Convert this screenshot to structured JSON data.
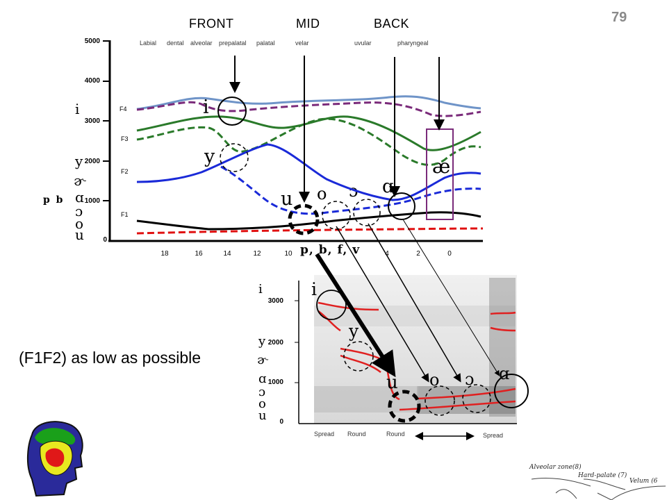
{
  "slide_number": "79",
  "regions": [
    "FRONT",
    "MID",
    "BACK"
  ],
  "places": [
    "Labial",
    "dental",
    "alveolar",
    "prepalatal",
    "palatal",
    "velar",
    "uvular",
    "pharyngeal"
  ],
  "top_chart": {
    "y_ticks": [
      "5000",
      "4000",
      "3000",
      "2000",
      "1000",
      "0"
    ],
    "formant_labels": [
      "F4",
      "F3",
      "F2",
      "F1"
    ],
    "x_ticks": [
      "18",
      "16",
      "14",
      "12",
      "10",
      "4",
      "2",
      "0"
    ],
    "vowel_column": [
      "i",
      "y",
      "ɚ",
      "ɑ",
      "ɔ",
      "o",
      "u"
    ],
    "consonant_label": "p  b",
    "vowels": [
      "i",
      "y",
      "u",
      "o",
      "ɔ",
      "ɑ",
      "æ"
    ],
    "consonant_box": "p, b, f, v"
  },
  "spectrogram": {
    "y_ticks": [
      "3000",
      "2000",
      "1000",
      "0"
    ],
    "vowel_column": [
      "i",
      "y",
      "ɚ",
      "ɑ",
      "ɔ",
      "o",
      "u"
    ],
    "vowels": [
      "i",
      "y",
      "u",
      "o",
      "ɔ",
      "ɑ"
    ],
    "bottom_labels": [
      "Spread",
      "Round",
      "Round",
      "Spread"
    ]
  },
  "caption": "(F1F2) as low as possible",
  "anatomy_labels": [
    "Alveolar zone(8)",
    "Hard-palate (7)",
    "Velum (6"
  ]
}
